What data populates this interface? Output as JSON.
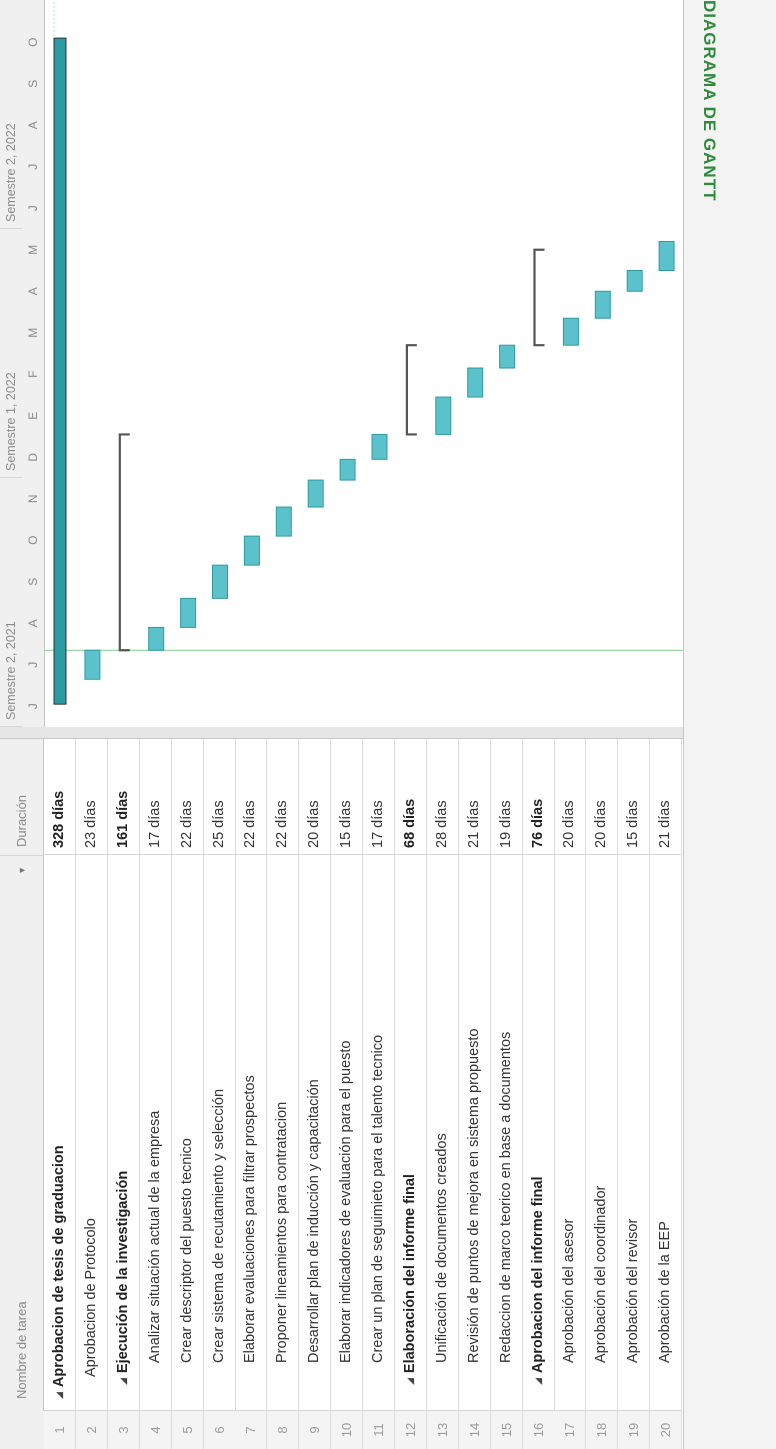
{
  "view_bar": {
    "label": "DIAGRAMA DE GANTT"
  },
  "table": {
    "columns": {
      "name": "Nombre de tarea",
      "duration": "Duración"
    },
    "rows": [
      {
        "id": "1",
        "name": "Aprobacion de tesis de graduacion",
        "duration": "328 días",
        "summary": true,
        "level": 0
      },
      {
        "id": "2",
        "name": "Aprobacion de Protocolo",
        "duration": "23 días",
        "summary": false,
        "level": 1
      },
      {
        "id": "3",
        "name": "Ejecución de la investigación",
        "duration": "161 días",
        "summary": true,
        "level": 1
      },
      {
        "id": "4",
        "name": "Analizar situación actual de la empresa",
        "duration": "17 días",
        "summary": false,
        "level": 2
      },
      {
        "id": "5",
        "name": "Crear descriptor del puesto tecnico",
        "duration": "22 días",
        "summary": false,
        "level": 2
      },
      {
        "id": "6",
        "name": "Crear sistema de recutamiento y selección",
        "duration": "25 días",
        "summary": false,
        "level": 2
      },
      {
        "id": "7",
        "name": "Elaborar evaluaciones para filtrar prospectos",
        "duration": "22 días",
        "summary": false,
        "level": 2
      },
      {
        "id": "8",
        "name": "Proponer lineamientos para contratacion",
        "duration": "22 días",
        "summary": false,
        "level": 2
      },
      {
        "id": "9",
        "name": "Desarrollar plan de inducción y capacitación",
        "duration": "20 días",
        "summary": false,
        "level": 2
      },
      {
        "id": "10",
        "name": "Elaborar indicadores de evaluación para el puesto",
        "duration": "15 días",
        "summary": false,
        "level": 2
      },
      {
        "id": "11",
        "name": "Crear un plan de seguimieto para el talento tecnico",
        "duration": "17 días",
        "summary": false,
        "level": 2
      },
      {
        "id": "12",
        "name": "Elaboración del informe final",
        "duration": "68 días",
        "summary": true,
        "level": 1
      },
      {
        "id": "13",
        "name": "Unificación de documentos creados",
        "duration": "28 días",
        "summary": false,
        "level": 2
      },
      {
        "id": "14",
        "name": "Revisión de puntos de mejora en sistema propuesto",
        "duration": "21 días",
        "summary": false,
        "level": 2
      },
      {
        "id": "15",
        "name": "Redaccion de marco teorico en base a documentos",
        "duration": "19 días",
        "summary": false,
        "level": 2
      },
      {
        "id": "16",
        "name": "Aprobacion del informe final",
        "duration": "76 días",
        "summary": true,
        "level": 1
      },
      {
        "id": "17",
        "name": "Aprobación del asesor",
        "duration": "20 días",
        "summary": false,
        "level": 2
      },
      {
        "id": "18",
        "name": "Aprobación del coordinador",
        "duration": "20 días",
        "summary": false,
        "level": 2
      },
      {
        "id": "19",
        "name": "Aprobación del revisor",
        "duration": "15 días",
        "summary": false,
        "level": 2
      },
      {
        "id": "20",
        "name": "Aprobación de la EEP",
        "duration": "21 días",
        "summary": false,
        "level": 2
      }
    ]
  },
  "timeline": {
    "semesters": [
      "Semestre 2, 2021",
      "Semestre 1, 2022",
      "Semestre 2, 2022"
    ],
    "months": [
      "J",
      "J",
      "A",
      "S",
      "O",
      "N",
      "D",
      "E",
      "F",
      "M",
      "A",
      "M",
      "J",
      "J",
      "A",
      "S",
      "O"
    ]
  },
  "gantt": {
    "colors": {
      "task_bar": "#5bc2cc",
      "task_border": "#2f9aa6",
      "project_bar": "#2a9aa3",
      "summary_bracket": "#555555",
      "today_line": "#7fcf8a"
    },
    "tasks": [
      {
        "row": 0,
        "start": 0.55,
        "end": 16.6,
        "kind": "project"
      },
      {
        "row": 1,
        "start": 1.15,
        "end": 1.85,
        "kind": "task"
      },
      {
        "row": 2,
        "start": 1.85,
        "end": 7.05,
        "kind": "summary"
      },
      {
        "row": 3,
        "start": 1.85,
        "end": 2.4,
        "kind": "task"
      },
      {
        "row": 4,
        "start": 2.4,
        "end": 3.1,
        "kind": "task"
      },
      {
        "row": 5,
        "start": 3.1,
        "end": 3.9,
        "kind": "task"
      },
      {
        "row": 6,
        "start": 3.9,
        "end": 4.6,
        "kind": "task"
      },
      {
        "row": 7,
        "start": 4.6,
        "end": 5.3,
        "kind": "task"
      },
      {
        "row": 8,
        "start": 5.3,
        "end": 5.95,
        "kind": "task"
      },
      {
        "row": 9,
        "start": 5.95,
        "end": 6.45,
        "kind": "task"
      },
      {
        "row": 10,
        "start": 6.45,
        "end": 7.05,
        "kind": "task"
      },
      {
        "row": 11,
        "start": 7.05,
        "end": 9.2,
        "kind": "summary"
      },
      {
        "row": 12,
        "start": 7.05,
        "end": 7.95,
        "kind": "task"
      },
      {
        "row": 13,
        "start": 7.95,
        "end": 8.65,
        "kind": "task"
      },
      {
        "row": 14,
        "start": 8.65,
        "end": 9.2,
        "kind": "task"
      },
      {
        "row": 15,
        "start": 9.2,
        "end": 11.5,
        "kind": "summary"
      },
      {
        "row": 16,
        "start": 9.2,
        "end": 9.85,
        "kind": "task"
      },
      {
        "row": 17,
        "start": 9.85,
        "end": 10.5,
        "kind": "task"
      },
      {
        "row": 18,
        "start": 10.5,
        "end": 11.0,
        "kind": "task"
      },
      {
        "row": 19,
        "start": 11.0,
        "end": 11.7,
        "kind": "task"
      }
    ],
    "today_month": 1.85
  }
}
